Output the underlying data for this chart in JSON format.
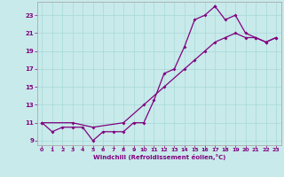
{
  "xlabel": "Windchill (Refroidissement éolien,°C)",
  "bg_color": "#c8eaea",
  "line_color": "#800080",
  "spine_color": "#aaaaaa",
  "xlim": [
    -0.5,
    23.5
  ],
  "ylim": [
    8.5,
    24.5
  ],
  "xticks": [
    0,
    1,
    2,
    3,
    4,
    5,
    6,
    7,
    8,
    9,
    10,
    11,
    12,
    13,
    14,
    15,
    16,
    17,
    18,
    19,
    20,
    21,
    22,
    23
  ],
  "yticks": [
    9,
    11,
    13,
    15,
    17,
    19,
    21,
    23
  ],
  "grid_color": "#a8d8d8",
  "curve1_x": [
    0,
    1,
    2,
    3,
    4,
    5,
    6,
    7,
    8,
    9,
    10,
    11,
    12,
    13,
    14,
    15,
    16,
    17
  ],
  "curve1_y": [
    11,
    10,
    10.5,
    10.5,
    10.5,
    9,
    10,
    10,
    10,
    11,
    11,
    13.5,
    16.5,
    17,
    19.5,
    22.5,
    23,
    24
  ],
  "curve2_x": [
    17,
    18,
    19,
    20,
    21,
    22,
    23
  ],
  "curve2_y": [
    24,
    22.5,
    23,
    21,
    20.5,
    20,
    20.5
  ],
  "straight_x": [
    0,
    3,
    5,
    8,
    10,
    12,
    14,
    15,
    16,
    17,
    18,
    19,
    20,
    21,
    22,
    23
  ],
  "straight_y": [
    11,
    11,
    10.5,
    11,
    13,
    15,
    17,
    18,
    19,
    20,
    20.5,
    21,
    20.5,
    20.5,
    20,
    20.5
  ]
}
